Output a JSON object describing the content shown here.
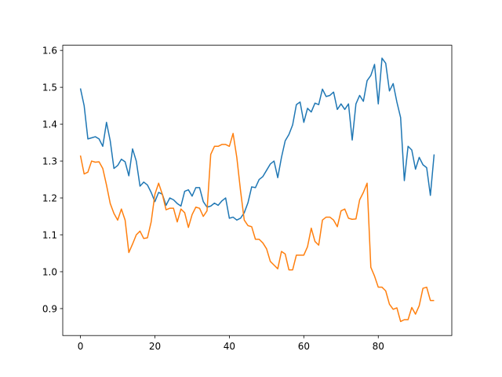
{
  "chart_data": {
    "type": "line",
    "x": [
      0,
      1,
      2,
      3,
      4,
      5,
      6,
      7,
      8,
      9,
      10,
      11,
      12,
      13,
      14,
      15,
      16,
      17,
      18,
      19,
      20,
      21,
      22,
      23,
      24,
      25,
      26,
      27,
      28,
      29,
      30,
      31,
      32,
      33,
      34,
      35,
      36,
      37,
      38,
      39,
      40,
      41,
      42,
      43,
      44,
      45,
      46,
      47,
      48,
      49,
      50,
      51,
      52,
      53,
      54,
      55,
      56,
      57,
      58,
      59,
      60,
      61,
      62,
      63,
      64,
      65,
      66,
      67,
      68,
      69,
      70,
      71,
      72,
      73,
      74,
      75,
      76,
      77,
      78,
      79,
      80,
      81,
      82,
      83,
      84,
      85,
      86,
      87,
      88,
      89,
      90,
      91,
      92,
      93,
      94,
      95
    ],
    "series": [
      {
        "color": "#1f77b4",
        "values": [
          1.497,
          1.45,
          1.36,
          1.363,
          1.366,
          1.36,
          1.34,
          1.405,
          1.355,
          1.28,
          1.288,
          1.305,
          1.298,
          1.26,
          1.333,
          1.3,
          1.232,
          1.243,
          1.235,
          1.215,
          1.19,
          1.215,
          1.21,
          1.18,
          1.2,
          1.195,
          1.185,
          1.178,
          1.218,
          1.222,
          1.205,
          1.228,
          1.228,
          1.19,
          1.175,
          1.178,
          1.186,
          1.18,
          1.192,
          1.2,
          1.145,
          1.148,
          1.14,
          1.145,
          1.16,
          1.187,
          1.23,
          1.228,
          1.25,
          1.258,
          1.275,
          1.292,
          1.3,
          1.255,
          1.31,
          1.355,
          1.372,
          1.398,
          1.453,
          1.46,
          1.405,
          1.443,
          1.433,
          1.457,
          1.453,
          1.495,
          1.475,
          1.478,
          1.487,
          1.44,
          1.455,
          1.44,
          1.455,
          1.357,
          1.455,
          1.478,
          1.462,
          1.518,
          1.532,
          1.562,
          1.455,
          1.579,
          1.565,
          1.49,
          1.51,
          1.46,
          1.418,
          1.247,
          1.34,
          1.33,
          1.278,
          1.31,
          1.29,
          1.282,
          1.207,
          1.318
        ]
      },
      {
        "color": "#ff7f0e",
        "values": [
          1.315,
          1.265,
          1.27,
          1.3,
          1.297,
          1.298,
          1.28,
          1.235,
          1.185,
          1.158,
          1.14,
          1.17,
          1.14,
          1.052,
          1.075,
          1.1,
          1.11,
          1.09,
          1.092,
          1.135,
          1.21,
          1.24,
          1.21,
          1.168,
          1.172,
          1.172,
          1.135,
          1.17,
          1.16,
          1.12,
          1.155,
          1.175,
          1.172,
          1.15,
          1.165,
          1.318,
          1.34,
          1.34,
          1.345,
          1.345,
          1.34,
          1.375,
          1.31,
          1.22,
          1.14,
          1.125,
          1.122,
          1.088,
          1.088,
          1.078,
          1.062,
          1.028,
          1.018,
          1.008,
          1.055,
          1.048,
          1.005,
          1.005,
          1.045,
          1.045,
          1.045,
          1.068,
          1.118,
          1.082,
          1.072,
          1.14,
          1.148,
          1.148,
          1.14,
          1.122,
          1.165,
          1.17,
          1.145,
          1.142,
          1.143,
          1.195,
          1.215,
          1.24,
          1.012,
          0.988,
          0.958,
          0.958,
          0.948,
          0.912,
          0.898,
          0.902,
          0.865,
          0.87,
          0.87,
          0.903,
          0.885,
          0.908,
          0.955,
          0.958,
          0.922,
          0.922
        ]
      }
    ],
    "xlim": [
      -4.75,
      99.75
    ],
    "xticks": [
      0,
      20,
      40,
      60,
      80
    ],
    "ylim": [
      0.827,
      1.614
    ],
    "yticks": [
      0.9,
      {
        "value": 1,
        "label": "1.0"
      },
      1.1,
      1.2,
      1.3,
      1.4,
      1.5,
      1.6
    ]
  }
}
